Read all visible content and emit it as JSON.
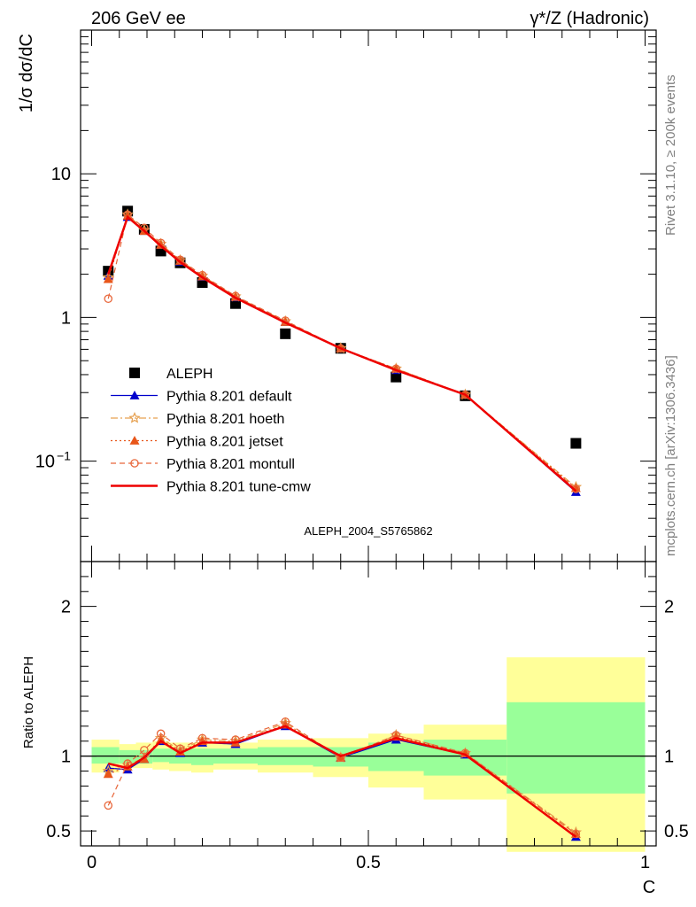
{
  "header": {
    "left": "206 GeV ee",
    "right": "γ*/Z (Hadronic)"
  },
  "side_labels": {
    "top": "Rivet 3.1.10, ≥ 200k events",
    "bottom": "mcplots.cern.ch [arXiv:1306.3436]"
  },
  "analysis_id": "ALEPH_2004_S5765862",
  "chart_data": [
    {
      "type": "scatter",
      "panel": "main",
      "ylabel": "1/σ  dσ/dC",
      "yscale": "log",
      "ylim": [
        0.02,
        100
      ],
      "xlim": [
        -0.02,
        1.02
      ],
      "yticks": [
        {
          "v": 0.1,
          "base": "10",
          "exp": "−1"
        },
        {
          "v": 1,
          "base": "1",
          "exp": ""
        },
        {
          "v": 10,
          "base": "10",
          "exp": ""
        }
      ],
      "legend_position": "middle-left",
      "series": [
        {
          "name": "ALEPH",
          "color": "#000000",
          "marker": "square",
          "line": "none",
          "x": [
            0.03,
            0.065,
            0.095,
            0.125,
            0.16,
            0.2,
            0.26,
            0.35,
            0.45,
            0.55,
            0.675,
            0.875
          ],
          "y": [
            2.1,
            5.5,
            4.1,
            2.9,
            2.4,
            1.75,
            1.25,
            0.77,
            0.61,
            0.385,
            0.285,
            0.133
          ]
        },
        {
          "name": "Pythia 8.201 default",
          "color": "#0000cc",
          "marker": "triangle",
          "line": "solid",
          "x": [
            0.03,
            0.065,
            0.095,
            0.125,
            0.16,
            0.2,
            0.26,
            0.35,
            0.45,
            0.55,
            0.675,
            0.875
          ],
          "y": [
            1.95,
            5.0,
            4.0,
            3.2,
            2.45,
            1.92,
            1.38,
            0.93,
            0.61,
            0.43,
            0.29,
            0.061
          ]
        },
        {
          "name": "Pythia 8.201 hoeth",
          "color": "#e6a050",
          "marker": "star",
          "line": "dashdot",
          "x": [
            0.03,
            0.065,
            0.095,
            0.125,
            0.16,
            0.2,
            0.26,
            0.35,
            0.45,
            0.55,
            0.675,
            0.875
          ],
          "y": [
            1.9,
            5.2,
            4.05,
            3.25,
            2.5,
            1.95,
            1.4,
            0.94,
            0.61,
            0.44,
            0.29,
            0.066
          ]
        },
        {
          "name": "Pythia 8.201 jetset",
          "color": "#e8561a",
          "marker": "triangle",
          "line": "dotted",
          "x": [
            0.03,
            0.065,
            0.095,
            0.125,
            0.16,
            0.2,
            0.26,
            0.35,
            0.45,
            0.55,
            0.675,
            0.875
          ],
          "y": [
            1.85,
            5.1,
            4.0,
            3.2,
            2.48,
            1.93,
            1.39,
            0.93,
            0.61,
            0.44,
            0.29,
            0.065
          ]
        },
        {
          "name": "Pythia 8.201 montull",
          "color": "#e8663a",
          "marker": "circle",
          "line": "dashed",
          "x": [
            0.03,
            0.065,
            0.095,
            0.125,
            0.16,
            0.2,
            0.26,
            0.35,
            0.45,
            0.55,
            0.675,
            0.875
          ],
          "y": [
            1.35,
            5.2,
            4.2,
            3.3,
            2.52,
            1.97,
            1.41,
            0.95,
            0.61,
            0.44,
            0.29,
            0.064
          ]
        },
        {
          "name": "Pythia 8.201 tune-cmw",
          "color": "#ee0000",
          "marker": "none",
          "line": "solid-thick",
          "x": [
            0.03,
            0.065,
            0.095,
            0.125,
            0.16,
            0.2,
            0.26,
            0.35,
            0.45,
            0.55,
            0.675,
            0.875
          ],
          "y": [
            2.0,
            5.0,
            4.0,
            3.15,
            2.43,
            1.9,
            1.37,
            0.92,
            0.61,
            0.43,
            0.29,
            0.062
          ]
        }
      ]
    },
    {
      "type": "line",
      "panel": "ratio",
      "ylabel": "Ratio to ALEPH",
      "xlabel": "C",
      "ylim": [
        0.4,
        2.3
      ],
      "xlim": [
        -0.02,
        1.02
      ],
      "xticks": [
        {
          "v": 0,
          "label": "0"
        },
        {
          "v": 0.5,
          "label": "0.5"
        },
        {
          "v": 1,
          "label": "1"
        }
      ],
      "yticks": [
        {
          "v": 0.5,
          "label": "0.5"
        },
        {
          "v": 1,
          "label": "1"
        },
        {
          "v": 2,
          "label": "2"
        }
      ],
      "reference_line": 1,
      "bands": [
        {
          "x0": 0.0,
          "x1": 0.05,
          "inner": [
            0.95,
            1.06
          ],
          "outer": [
            0.89,
            1.11
          ]
        },
        {
          "x0": 0.05,
          "x1": 0.08,
          "inner": [
            0.95,
            1.04
          ],
          "outer": [
            0.92,
            1.08
          ]
        },
        {
          "x0": 0.08,
          "x1": 0.11,
          "inner": [
            0.95,
            1.04
          ],
          "outer": [
            0.92,
            1.09
          ]
        },
        {
          "x0": 0.11,
          "x1": 0.14,
          "inner": [
            0.96,
            1.05
          ],
          "outer": [
            0.91,
            1.1
          ]
        },
        {
          "x0": 0.14,
          "x1": 0.18,
          "inner": [
            0.95,
            1.05
          ],
          "outer": [
            0.9,
            1.09
          ]
        },
        {
          "x0": 0.18,
          "x1": 0.22,
          "inner": [
            0.94,
            1.05
          ],
          "outer": [
            0.89,
            1.09
          ]
        },
        {
          "x0": 0.22,
          "x1": 0.3,
          "inner": [
            0.95,
            1.05
          ],
          "outer": [
            0.91,
            1.09
          ]
        },
        {
          "x0": 0.3,
          "x1": 0.4,
          "inner": [
            0.94,
            1.06
          ],
          "outer": [
            0.89,
            1.11
          ]
        },
        {
          "x0": 0.4,
          "x1": 0.5,
          "inner": [
            0.93,
            1.06
          ],
          "outer": [
            0.86,
            1.12
          ]
        },
        {
          "x0": 0.5,
          "x1": 0.6,
          "inner": [
            0.9,
            1.09
          ],
          "outer": [
            0.79,
            1.15
          ]
        },
        {
          "x0": 0.6,
          "x1": 0.75,
          "inner": [
            0.87,
            1.11
          ],
          "outer": [
            0.71,
            1.21
          ]
        },
        {
          "x0": 0.75,
          "x1": 1.0,
          "inner": [
            0.75,
            1.36
          ],
          "outer": [
            0.36,
            1.66
          ]
        }
      ],
      "x": [
        0.03,
        0.065,
        0.095,
        0.125,
        0.16,
        0.2,
        0.26,
        0.35,
        0.45,
        0.55,
        0.675,
        0.875
      ],
      "series": [
        {
          "name": "Pythia 8.201 default",
          "color": "#0000cc",
          "marker": "triangle",
          "line": "solid",
          "y": [
            0.92,
            0.91,
            0.98,
            1.1,
            1.02,
            1.09,
            1.08,
            1.2,
            0.99,
            1.11,
            1.01,
            0.46
          ]
        },
        {
          "name": "Pythia 8.201 hoeth",
          "color": "#e6a050",
          "marker": "star",
          "line": "dashdot",
          "y": [
            0.9,
            0.94,
            0.99,
            1.12,
            1.04,
            1.11,
            1.1,
            1.22,
            0.99,
            1.14,
            1.02,
            0.49
          ]
        },
        {
          "name": "Pythia 8.201 jetset",
          "color": "#e8561a",
          "marker": "triangle",
          "line": "dotted",
          "y": [
            0.88,
            0.93,
            0.98,
            1.11,
            1.03,
            1.1,
            1.09,
            1.21,
            0.99,
            1.13,
            1.02,
            0.48
          ]
        },
        {
          "name": "Pythia 8.201 montull",
          "color": "#e8663a",
          "marker": "circle",
          "line": "dashed",
          "y": [
            0.67,
            0.95,
            1.04,
            1.15,
            1.05,
            1.12,
            1.11,
            1.23,
            0.99,
            1.14,
            1.02,
            0.48
          ]
        },
        {
          "name": "Pythia 8.201 tune-cmw",
          "color": "#ee0000",
          "marker": "none",
          "line": "solid-thick",
          "y": [
            0.95,
            0.92,
            0.99,
            1.1,
            1.02,
            1.09,
            1.09,
            1.2,
            1.0,
            1.12,
            1.01,
            0.46
          ]
        }
      ]
    }
  ]
}
